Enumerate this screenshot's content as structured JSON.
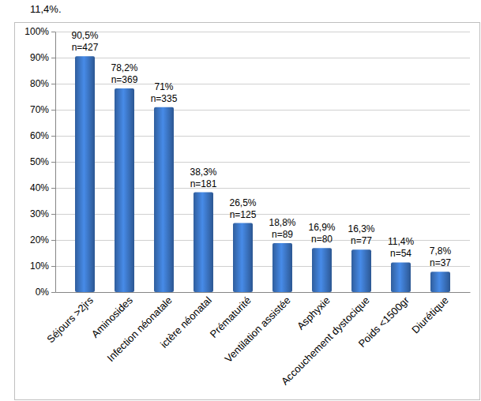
{
  "chart_data": {
    "type": "bar",
    "annotations": [
      "11,4%."
    ],
    "categories": [
      "Séjours >2jrs",
      "Aminosides",
      "Infection néonatale",
      "ictère néonatal",
      "Prématurité",
      "Ventilation assistée",
      "Asphyxie",
      "Accouchement dystocique",
      "Poids <1500gr",
      "Diurétique"
    ],
    "values": [
      90.5,
      78.2,
      71,
      38.3,
      26.5,
      18.8,
      16.9,
      16.3,
      11.4,
      7.8
    ],
    "value_labels": [
      "90,5%",
      "78,2%",
      "71%",
      "38,3%",
      "26,5%",
      "18,8%",
      "16,9%",
      "16,3%",
      "11,4%",
      "7,8%"
    ],
    "count_labels": [
      "n=427",
      "n=369",
      "n=335",
      "n=181",
      "n=125",
      "n=89",
      "n=80",
      "n=77",
      "n=54",
      "n=37"
    ],
    "color": "#3b74c2",
    "ylim": [
      0,
      100
    ],
    "yticks": [
      {
        "value": 0,
        "label": "0%"
      },
      {
        "value": 10,
        "label": "10%"
      },
      {
        "value": 20,
        "label": "20%"
      },
      {
        "value": 30,
        "label": "30%"
      },
      {
        "value": 40,
        "label": "40%"
      },
      {
        "value": 50,
        "label": "50%"
      },
      {
        "value": 60,
        "label": "60%"
      },
      {
        "value": 70,
        "label": "70%"
      },
      {
        "value": 80,
        "label": "80%"
      },
      {
        "value": 90,
        "label": "90%"
      },
      {
        "value": 100,
        "label": "100%"
      }
    ],
    "grid": true,
    "data_labels": true
  }
}
